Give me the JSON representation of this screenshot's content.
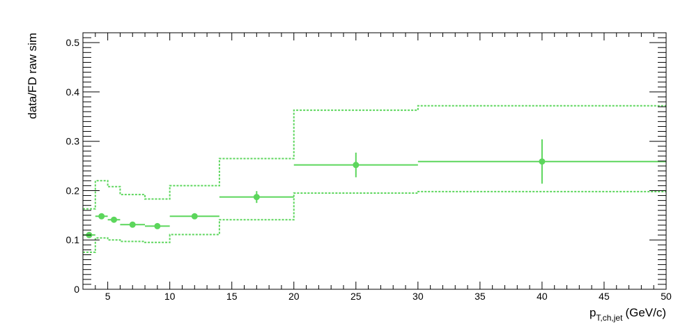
{
  "chart_data": {
    "type": "scatter",
    "title": "",
    "xlabel": {
      "main": "p",
      "sub": "T,ch,jet",
      "unit": "(GeV/c)"
    },
    "ylabel": "data/FD raw sim",
    "xlim": [
      3,
      50
    ],
    "ylim": [
      0,
      0.52
    ],
    "x_ticks": [
      5,
      10,
      15,
      20,
      25,
      30,
      35,
      40,
      45,
      50
    ],
    "y_ticks": [
      0,
      0.1,
      0.2,
      0.3,
      0.4,
      0.5
    ],
    "y_tick_labels": [
      "0",
      "0.1",
      "0.2",
      "0.3",
      "0.4",
      "0.5"
    ],
    "grid": false,
    "colors": {
      "series": "#5cd65c"
    },
    "points": [
      {
        "x": 3.5,
        "xlow": 3,
        "xhigh": 4,
        "y": 0.11,
        "yerr": 0.004
      },
      {
        "x": 4.5,
        "xlow": 4,
        "xhigh": 5,
        "y": 0.148,
        "yerr": 0.004
      },
      {
        "x": 5.5,
        "xlow": 5,
        "xhigh": 6,
        "y": 0.141,
        "yerr": 0.004
      },
      {
        "x": 7,
        "xlow": 6,
        "xhigh": 8,
        "y": 0.131,
        "yerr": 0.004
      },
      {
        "x": 9,
        "xlow": 8,
        "xhigh": 10,
        "y": 0.128,
        "yerr": 0.004
      },
      {
        "x": 12,
        "xlow": 10,
        "xhigh": 14,
        "y": 0.148,
        "yerr": 0.004
      },
      {
        "x": 17,
        "xlow": 14,
        "xhigh": 20,
        "y": 0.187,
        "yerr": 0.012
      },
      {
        "x": 25,
        "xlow": 20,
        "xhigh": 30,
        "y": 0.252,
        "yerr": 0.025
      },
      {
        "x": 40,
        "xlow": 30,
        "xhigh": 50,
        "y": 0.259,
        "yerr": 0.045
      }
    ],
    "systematic_band": {
      "edges": [
        3,
        4,
        5,
        6,
        8,
        10,
        14,
        20,
        30,
        50
      ],
      "upper": [
        0.163,
        0.22,
        0.208,
        0.192,
        0.183,
        0.21,
        0.265,
        0.363,
        0.372
      ],
      "lower": [
        0.075,
        0.104,
        0.1,
        0.097,
        0.095,
        0.111,
        0.141,
        0.195,
        0.198
      ]
    }
  }
}
